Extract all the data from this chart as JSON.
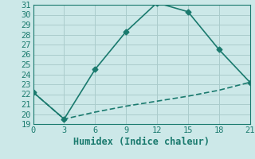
{
  "xlabel": "Humidex (Indice chaleur)",
  "line1_x": [
    0,
    3,
    6,
    9,
    12,
    15,
    18,
    21
  ],
  "line1_y": [
    22.2,
    19.5,
    24.5,
    28.3,
    31.2,
    30.3,
    26.5,
    23.2
  ],
  "line2_x": [
    0,
    3,
    6,
    9,
    12,
    15,
    18,
    21
  ],
  "line2_y": [
    22.2,
    19.5,
    20.2,
    20.8,
    21.3,
    21.8,
    22.4,
    23.2
  ],
  "line_color": "#1a7a6e",
  "bg_color": "#cce8e8",
  "grid_color": "#aacccc",
  "xlim": [
    0,
    21
  ],
  "ylim": [
    19,
    31
  ],
  "xticks": [
    0,
    3,
    6,
    9,
    12,
    15,
    18,
    21
  ],
  "yticks": [
    19,
    20,
    21,
    22,
    23,
    24,
    25,
    26,
    27,
    28,
    29,
    30,
    31
  ],
  "marker": "D",
  "marker_size": 3.5,
  "linewidth": 1.2,
  "label_fontsize": 7.5,
  "xlabel_fontsize": 8.5
}
